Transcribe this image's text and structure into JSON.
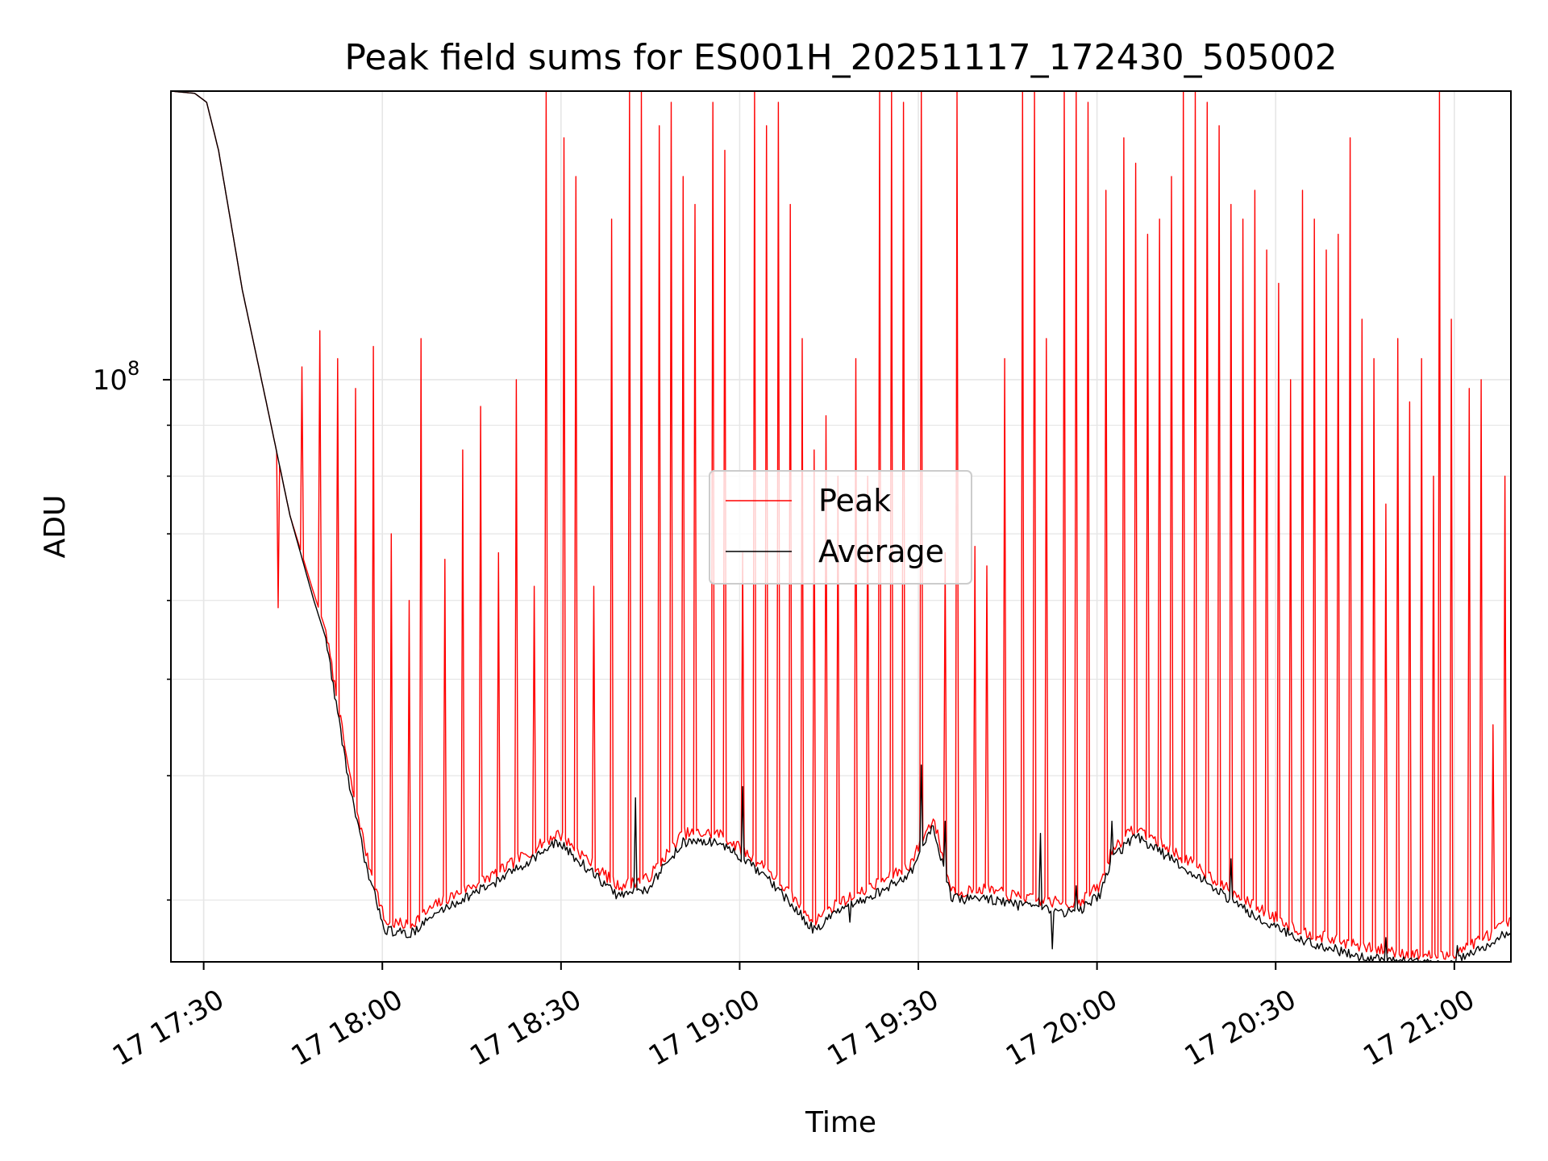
{
  "chart_data": {
    "type": "line",
    "title": "Peak field sums for ES001H_20251117_172430_505002",
    "xlabel": "Time",
    "ylabel": "ADU",
    "x_unit": "minutes since 17 17:24:30",
    "xlim": [
      0,
      225
    ],
    "ylim": [
      26000000,
      195000000
    ],
    "yscale": "log",
    "grid": true,
    "legend_position": "center",
    "x_ticks": [
      {
        "label": "17 17:30",
        "value": 5.5
      },
      {
        "label": "17 18:00",
        "value": 35.5
      },
      {
        "label": "17 18:30",
        "value": 65.5
      },
      {
        "label": "17 19:00",
        "value": 95.5
      },
      {
        "label": "17 19:30",
        "value": 125.5
      },
      {
        "label": "17 20:00",
        "value": 155.5
      },
      {
        "label": "17 20:30",
        "value": 185.5
      },
      {
        "label": "17 21:00",
        "value": 215.5
      }
    ],
    "y_ticks": [
      {
        "base": "10",
        "exp": "8",
        "value": 100000000
      }
    ],
    "y_minor_ticks": [
      30000000,
      40000000,
      50000000,
      60000000,
      70000000,
      80000000,
      90000000,
      200000000
    ],
    "series": [
      {
        "name": "Peak",
        "color": "#ff0000",
        "baseline_x": [
          0,
          4,
          6,
          8,
          12,
          16,
          20,
          24,
          26,
          30,
          33,
          36,
          40,
          45,
          55,
          65,
          75,
          80,
          86,
          92,
          95,
          100,
          108,
          112,
          116,
          124,
          128,
          131,
          133,
          136,
          145,
          152,
          156,
          158,
          162,
          172,
          180,
          190,
          200,
          210,
          214,
          218,
          225
        ],
        "baseline_y": [
          195000000,
          194000000,
          190000000,
          170000000,
          123000000,
          95000000,
          73000000,
          61000000,
          56000000,
          40000000,
          33000000,
          28500000,
          28300000,
          29800000,
          32000000,
          35000000,
          31000000,
          31500000,
          35000000,
          35000000,
          34000000,
          32300000,
          28600000,
          29800000,
          30500000,
          32500000,
          36300000,
          30800000,
          30600000,
          30800000,
          30000000,
          29700000,
          31000000,
          33700000,
          35500000,
          32500000,
          30000000,
          27900000,
          26900000,
          26400000,
          26300000,
          27000000,
          28500000
        ],
        "spikes": [
          [
            18,
            59000000
          ],
          [
            22,
            103000000
          ],
          [
            25,
            112000000
          ],
          [
            28,
            105000000
          ],
          [
            31,
            98000000
          ],
          [
            34,
            108000000
          ],
          [
            37,
            70000000
          ],
          [
            40,
            60000000
          ],
          [
            42,
            110000000
          ],
          [
            46,
            66000000
          ],
          [
            49,
            85000000
          ],
          [
            52,
            94000000
          ],
          [
            55,
            67000000
          ],
          [
            58,
            100000000
          ],
          [
            61,
            62000000
          ],
          [
            63,
            195000000
          ],
          [
            66,
            175000000
          ],
          [
            68,
            160000000
          ],
          [
            71,
            62000000
          ],
          [
            74,
            145000000
          ],
          [
            77,
            195000000
          ],
          [
            79,
            195000000
          ],
          [
            82,
            180000000
          ],
          [
            84,
            190000000
          ],
          [
            86,
            160000000
          ],
          [
            88,
            150000000
          ],
          [
            91,
            190000000
          ],
          [
            93,
            170000000
          ],
          [
            96,
            67000000
          ],
          [
            98,
            195000000
          ],
          [
            100,
            180000000
          ],
          [
            102,
            190000000
          ],
          [
            104,
            150000000
          ],
          [
            106,
            110000000
          ],
          [
            108,
            85000000
          ],
          [
            110,
            92000000
          ],
          [
            112,
            80000000
          ],
          [
            115,
            105000000
          ],
          [
            117,
            80000000
          ],
          [
            119,
            195000000
          ],
          [
            121,
            195000000
          ],
          [
            123,
            190000000
          ],
          [
            126,
            195000000
          ],
          [
            130,
            67000000
          ],
          [
            132,
            195000000
          ],
          [
            135,
            68000000
          ],
          [
            137,
            65000000
          ],
          [
            140,
            105000000
          ],
          [
            143,
            195000000
          ],
          [
            145,
            195000000
          ],
          [
            147,
            110000000
          ],
          [
            150,
            195000000
          ],
          [
            152,
            195000000
          ],
          [
            154,
            190000000
          ],
          [
            157,
            155000000
          ],
          [
            160,
            175000000
          ],
          [
            162,
            165000000
          ],
          [
            164,
            140000000
          ],
          [
            166,
            145000000
          ],
          [
            168,
            160000000
          ],
          [
            170,
            195000000
          ],
          [
            172,
            195000000
          ],
          [
            174,
            190000000
          ],
          [
            176,
            180000000
          ],
          [
            178,
            150000000
          ],
          [
            180,
            145000000
          ],
          [
            182,
            155000000
          ],
          [
            184,
            135000000
          ],
          [
            186,
            125000000
          ],
          [
            188,
            100000000
          ],
          [
            190,
            155000000
          ],
          [
            192,
            145000000
          ],
          [
            194,
            135000000
          ],
          [
            196,
            140000000
          ],
          [
            198,
            175000000
          ],
          [
            200,
            115000000
          ],
          [
            202,
            105000000
          ],
          [
            204,
            75000000
          ],
          [
            206,
            110000000
          ],
          [
            208,
            95000000
          ],
          [
            210,
            105000000
          ],
          [
            212,
            80000000
          ],
          [
            213,
            195000000
          ],
          [
            215,
            115000000
          ],
          [
            218,
            98000000
          ],
          [
            220,
            100000000
          ],
          [
            222,
            45000000
          ],
          [
            224,
            80000000
          ]
        ]
      },
      {
        "name": "Average",
        "color": "#000000",
        "baseline_x": [
          0,
          4,
          6,
          8,
          12,
          16,
          20,
          24,
          26,
          30,
          33,
          36,
          40,
          45,
          55,
          65,
          75,
          80,
          86,
          92,
          95,
          100,
          108,
          112,
          116,
          124,
          128,
          131,
          133,
          136,
          145,
          152,
          156,
          158,
          162,
          172,
          180,
          190,
          200,
          210,
          214,
          218,
          225
        ],
        "baseline_y": [
          195000000,
          194000000,
          190000000,
          170000000,
          123000000,
          95000000,
          73000000,
          60000000,
          55000000,
          39000000,
          32000000,
          28000000,
          27700000,
          29200000,
          31400000,
          34300000,
          30300000,
          30800000,
          34300000,
          34300000,
          33300000,
          31600000,
          28000000,
          29200000,
          29900000,
          31800000,
          35600000,
          30200000,
          30000000,
          30200000,
          29400000,
          29100000,
          30400000,
          33000000,
          34800000,
          31800000,
          29400000,
          27300000,
          26300000,
          25900000,
          25800000,
          26400000,
          27900000
        ],
        "spikes": [
          [
            78,
            38000000
          ],
          [
            96,
            39000000
          ],
          [
            126,
            41000000
          ],
          [
            130,
            36000000
          ],
          [
            146,
            35000000
          ],
          [
            152,
            31000000
          ],
          [
            158,
            36000000
          ],
          [
            178,
            33000000
          ],
          [
            204,
            27500000
          ],
          [
            216,
            27000000
          ]
        ],
        "dips": [
          [
            114,
            28500000
          ],
          [
            148,
            26800000
          ],
          [
            206,
            25200000
          ],
          [
            210,
            24800000
          ]
        ]
      }
    ]
  }
}
